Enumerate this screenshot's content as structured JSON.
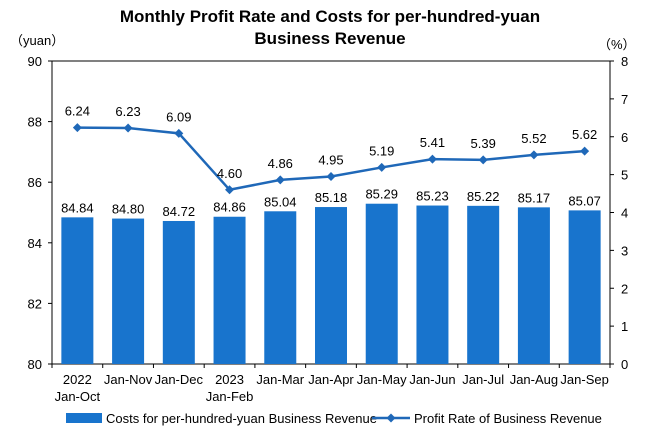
{
  "chart_data": {
    "type": "bar",
    "title": [
      "Monthly Profit Rate and Costs for per-hundred-yuan",
      "Business Revenue"
    ],
    "categories": [
      [
        "2022",
        "Jan-Oct"
      ],
      [
        "Jan-Nov"
      ],
      [
        "Jan-Dec"
      ],
      [
        "2023",
        "Jan-Feb"
      ],
      [
        "Jan-Mar"
      ],
      [
        "Jan-Apr"
      ],
      [
        "Jan-May"
      ],
      [
        "Jan-Jun"
      ],
      [
        "Jan-Jul"
      ],
      [
        "Jan-Aug"
      ],
      [
        "Jan-Sep"
      ]
    ],
    "series": [
      {
        "name": "Costs for per-hundred-yuan Business Revenue",
        "kind": "bar",
        "axis": "left",
        "color": "#1874CD",
        "values": [
          84.84,
          84.8,
          84.72,
          84.86,
          85.04,
          85.18,
          85.29,
          85.23,
          85.22,
          85.17,
          85.07
        ],
        "labels": [
          "84.84",
          "84.80",
          "84.72",
          "84.86",
          "85.04",
          "85.18",
          "85.29",
          "85.23",
          "85.22",
          "85.17",
          "85.07"
        ]
      },
      {
        "name": "Profit Rate of Business Revenue",
        "kind": "line",
        "axis": "right",
        "color": "#1F68B8",
        "values": [
          6.24,
          6.23,
          6.09,
          4.6,
          4.86,
          4.95,
          5.19,
          5.41,
          5.39,
          5.52,
          5.62
        ],
        "labels": [
          "6.24",
          "6.23",
          "6.09",
          "4.60",
          "4.86",
          "4.95",
          "5.19",
          "5.41",
          "5.39",
          "5.52",
          "5.62"
        ]
      }
    ],
    "y_left": {
      "unit": "（yuan）",
      "ylim": [
        80,
        90
      ],
      "ticks": [
        "80",
        "82",
        "84",
        "86",
        "88",
        "90"
      ]
    },
    "y_right": {
      "unit": "（%）",
      "ylim": [
        0,
        8
      ],
      "ticks": [
        "0",
        "1",
        "2",
        "3",
        "4",
        "5",
        "6",
        "7",
        "8"
      ]
    },
    "legend": "bottom",
    "grid": false
  }
}
